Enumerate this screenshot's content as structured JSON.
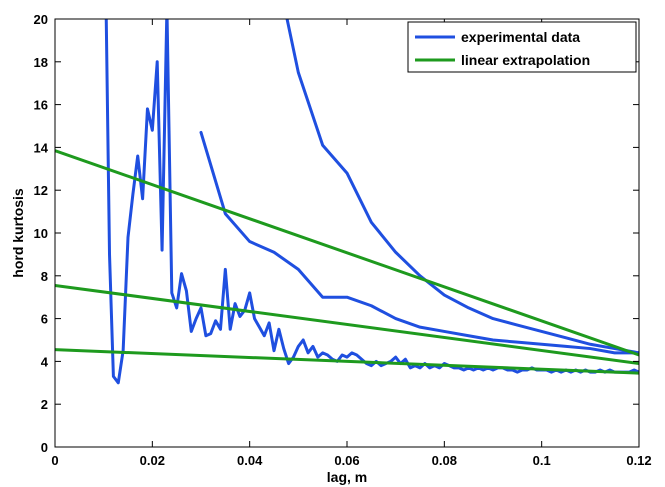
{
  "chart_data": {
    "type": "line",
    "xlabel": "lag, m",
    "ylabel": "hord kurtosis",
    "xlim": [
      0,
      0.12
    ],
    "ylim": [
      0,
      20
    ],
    "x_ticks": [
      0,
      0.02,
      0.04,
      0.06,
      0.08,
      0.1,
      0.12
    ],
    "x_tick_labels": [
      "0",
      "0.02",
      "0.04",
      "0.06",
      "0.08",
      "0.1",
      "0.12"
    ],
    "y_ticks": [
      0,
      2,
      4,
      6,
      8,
      10,
      12,
      14,
      16,
      18,
      20
    ],
    "y_tick_labels": [
      "0",
      "2",
      "4",
      "6",
      "8",
      "10",
      "12",
      "14",
      "16",
      "18",
      "20"
    ],
    "grid": false,
    "legend_position": "top-right",
    "legend": [
      {
        "label": "experimental data",
        "color": "#1f4fe0"
      },
      {
        "label": "linear extrapolation",
        "color": "#1e9a1e"
      }
    ],
    "series": [
      {
        "group": "experimental data",
        "color": "#1f4fe0",
        "x": [
          0.0105,
          0.0112,
          0.012,
          0.013,
          0.014,
          0.015,
          0.016,
          0.017,
          0.018,
          0.019,
          0.02,
          0.021,
          0.022,
          0.023,
          0.024,
          0.025,
          0.026,
          0.027,
          0.028,
          0.029,
          0.03,
          0.031,
          0.032,
          0.033,
          0.034,
          0.035,
          0.036,
          0.037,
          0.038,
          0.039,
          0.04,
          0.041,
          0.042,
          0.043,
          0.044,
          0.045,
          0.046,
          0.047,
          0.048,
          0.049,
          0.05,
          0.051,
          0.052,
          0.053,
          0.054,
          0.055,
          0.056,
          0.057,
          0.058,
          0.059,
          0.06,
          0.061,
          0.062,
          0.063,
          0.064,
          0.065,
          0.066,
          0.067,
          0.068,
          0.069,
          0.07,
          0.071,
          0.072,
          0.073,
          0.074,
          0.075,
          0.076,
          0.077,
          0.078,
          0.079,
          0.08,
          0.081,
          0.082,
          0.083,
          0.084,
          0.085,
          0.086,
          0.087,
          0.088,
          0.089,
          0.09,
          0.091,
          0.092,
          0.093,
          0.094,
          0.095,
          0.096,
          0.097,
          0.098,
          0.099,
          0.1,
          0.101,
          0.102,
          0.103,
          0.104,
          0.105,
          0.106,
          0.107,
          0.108,
          0.109,
          0.11,
          0.111,
          0.112,
          0.113,
          0.114,
          0.115,
          0.116,
          0.117,
          0.118,
          0.119,
          0.12
        ],
        "y": [
          20.5,
          9.0,
          3.3,
          3.0,
          4.5,
          9.8,
          11.8,
          13.6,
          11.6,
          15.8,
          14.8,
          18.0,
          9.2,
          20.5,
          7.2,
          6.5,
          8.1,
          7.3,
          5.4,
          6.0,
          6.5,
          5.2,
          5.3,
          5.9,
          5.5,
          8.3,
          5.5,
          6.7,
          6.1,
          6.4,
          7.2,
          6.0,
          5.6,
          5.2,
          5.8,
          4.5,
          5.5,
          4.6,
          3.9,
          4.2,
          4.7,
          5.0,
          4.4,
          4.7,
          4.2,
          4.4,
          4.3,
          4.1,
          4.0,
          4.3,
          4.2,
          4.4,
          4.3,
          4.1,
          3.9,
          3.8,
          4.0,
          3.8,
          3.9,
          4.0,
          4.2,
          3.9,
          4.1,
          3.7,
          3.8,
          3.7,
          3.9,
          3.7,
          3.8,
          3.7,
          3.9,
          3.8,
          3.7,
          3.7,
          3.6,
          3.7,
          3.6,
          3.7,
          3.6,
          3.7,
          3.6,
          3.7,
          3.7,
          3.6,
          3.6,
          3.5,
          3.6,
          3.6,
          3.7,
          3.6,
          3.6,
          3.6,
          3.5,
          3.6,
          3.5,
          3.6,
          3.5,
          3.6,
          3.5,
          3.6,
          3.5,
          3.5,
          3.6,
          3.5,
          3.6,
          3.5,
          3.5,
          3.5,
          3.5,
          3.6,
          3.5
        ]
      },
      {
        "group": "experimental data",
        "color": "#1f4fe0",
        "x": [
          0.03,
          0.035,
          0.04,
          0.045,
          0.05,
          0.055,
          0.06,
          0.065,
          0.07,
          0.075,
          0.08,
          0.085,
          0.09,
          0.095,
          0.1,
          0.105,
          0.11,
          0.115,
          0.12
        ],
        "y": [
          14.7,
          10.9,
          9.6,
          9.1,
          8.3,
          7.0,
          7.0,
          6.6,
          6.0,
          5.6,
          5.4,
          5.2,
          5.0,
          4.9,
          4.8,
          4.7,
          4.6,
          4.4,
          4.4
        ]
      },
      {
        "group": "experimental data",
        "color": "#1f4fe0",
        "x": [
          0.0475,
          0.05,
          0.055,
          0.06,
          0.065,
          0.07,
          0.075,
          0.08,
          0.085,
          0.09,
          0.095,
          0.1,
          0.105,
          0.11,
          0.115,
          0.12
        ],
        "y": [
          20.2,
          17.5,
          14.1,
          12.8,
          10.5,
          9.1,
          8.0,
          7.1,
          6.5,
          6.0,
          5.7,
          5.4,
          5.1,
          4.8,
          4.6,
          4.4
        ]
      },
      {
        "group": "linear extrapolation",
        "color": "#1e9a1e",
        "x": [
          0,
          0.12
        ],
        "y": [
          13.85,
          4.3
        ]
      },
      {
        "group": "linear extrapolation",
        "color": "#1e9a1e",
        "x": [
          0,
          0.12
        ],
        "y": [
          7.55,
          3.9
        ]
      },
      {
        "group": "linear extrapolation",
        "color": "#1e9a1e",
        "x": [
          0,
          0.12
        ],
        "y": [
          4.55,
          3.45
        ]
      }
    ]
  }
}
